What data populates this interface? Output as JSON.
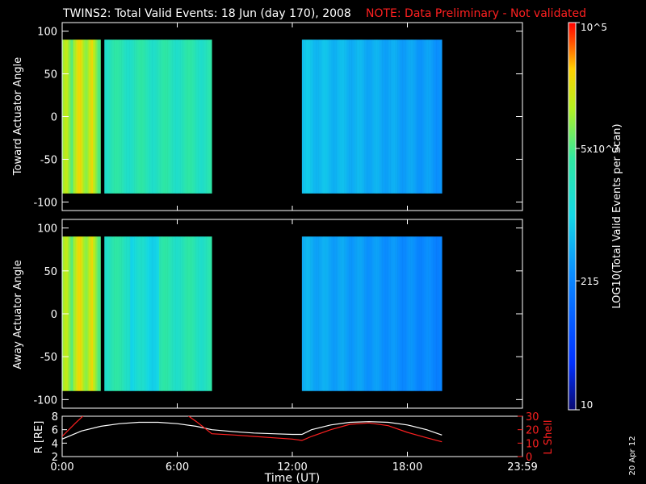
{
  "header": {
    "title": "TWINS2: Total Valid Events: 18 Jun (day 170), 2008",
    "note": "NOTE: Data Preliminary - Not validated"
  },
  "footer": {
    "date_stamp": "20 Apr 12"
  },
  "colors": {
    "background": "#000000",
    "axes": "#ffffff",
    "note": "#ff2020",
    "r_line": "#ffffff",
    "lshell_line": "#ff2020"
  },
  "chart_data": [
    {
      "type": "heatmap",
      "ylabel": "Toward Actuator Angle",
      "ylim": [
        -110,
        110
      ],
      "yticks": [
        "100",
        "50",
        "0",
        "-50",
        "-100"
      ],
      "xlim_hours": [
        0,
        24
      ],
      "data_segments_hours": [
        [
          0.0,
          2.0
        ],
        [
          2.2,
          7.8
        ],
        [
          12.5,
          19.8
        ]
      ],
      "colorbar": {
        "label": "LOG10(Total Valid Events per Scan)",
        "scale": "log",
        "range": [
          10,
          100000
        ],
        "ticks": [
          "10",
          "215",
          "5x10^3",
          "10^5"
        ]
      }
    },
    {
      "type": "heatmap",
      "ylabel": "Away Actuator Angle",
      "ylim": [
        -110,
        110
      ],
      "yticks": [
        "100",
        "50",
        "0",
        "-50",
        "-100"
      ],
      "xlim_hours": [
        0,
        24
      ],
      "data_segments_hours": [
        [
          0.0,
          2.0
        ],
        [
          2.2,
          7.8
        ],
        [
          12.5,
          19.8
        ]
      ]
    },
    {
      "type": "line",
      "xlabel": "Time (UT)",
      "xticks": [
        "0:00",
        "6:00",
        "12:00",
        "18:00",
        "23:59"
      ],
      "left_axis": {
        "label": "R [RE]",
        "ylim": [
          2,
          8
        ],
        "ticks": [
          "2",
          "4",
          "6",
          "8"
        ]
      },
      "right_axis": {
        "label": "L Shell",
        "ylim": [
          0,
          30
        ],
        "ticks": [
          "0",
          "10",
          "20",
          "30"
        ]
      },
      "series": [
        {
          "axis": "left",
          "color": "#ffffff",
          "x": [
            0,
            1,
            2,
            3,
            4,
            5,
            6,
            7,
            7.8,
            9,
            10,
            11,
            12,
            12.5,
            13,
            14,
            15,
            16,
            17,
            18,
            19,
            19.8
          ],
          "y": [
            4.6,
            5.8,
            6.5,
            6.9,
            7.1,
            7.1,
            6.9,
            6.5,
            6.0,
            5.7,
            5.5,
            5.4,
            5.3,
            5.3,
            6.0,
            6.7,
            7.1,
            7.2,
            7.1,
            6.7,
            6.0,
            5.2
          ]
        },
        {
          "axis": "right",
          "color": "#ff2020",
          "x": [
            0,
            0.7,
            1.3,
            6.3,
            7.0,
            7.8,
            9,
            10,
            11,
            12,
            12.5,
            13,
            14,
            15,
            16,
            17,
            18,
            19,
            19.8
          ],
          "y": [
            15,
            25,
            33,
            33,
            26,
            17,
            16,
            15,
            14,
            13,
            12,
            15,
            20,
            24,
            25,
            23,
            18,
            14,
            11
          ]
        }
      ]
    }
  ]
}
